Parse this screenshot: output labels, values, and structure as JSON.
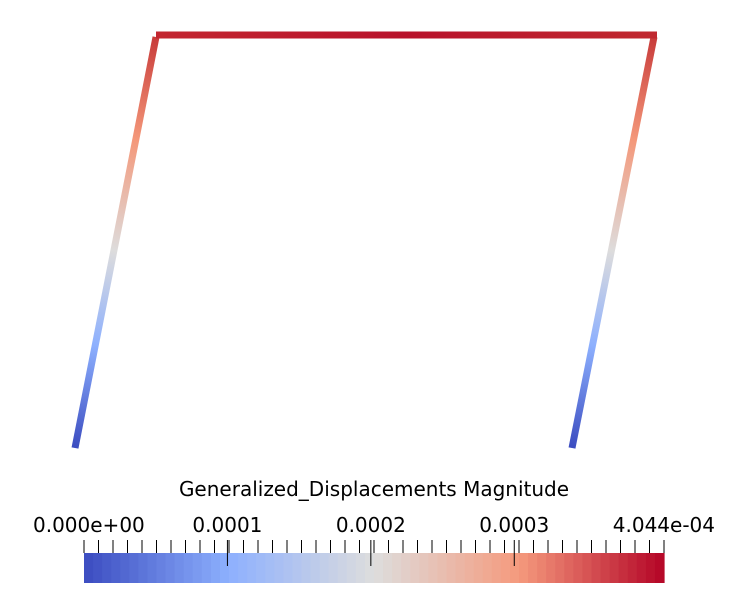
{
  "colorbar": {
    "title": "Generalized_Displacements Magnitude",
    "range": [
      0.0,
      0.0004044
    ],
    "labels": [
      {
        "text": "0.000e+00",
        "value": 0.0
      },
      {
        "text": "0.0001",
        "value": 0.0001
      },
      {
        "text": "0.0002",
        "value": 0.0002
      },
      {
        "text": "0.0003",
        "value": 0.0003
      },
      {
        "text": "4.044e-04",
        "value": 0.0004044
      }
    ],
    "colormap": {
      "name": "Cool to Warm",
      "low": "#3b4cc0",
      "mid": "#dddddd",
      "high": "#b40426"
    }
  },
  "frame": {
    "members": [
      {
        "name": "left-column",
        "min_value": 0.0,
        "max_value": 0.00036
      },
      {
        "name": "top-beam",
        "min_value": 0.00037,
        "max_value": 0.0004044
      },
      {
        "name": "right-column",
        "min_value": 0.0,
        "max_value": 0.00036
      }
    ]
  }
}
